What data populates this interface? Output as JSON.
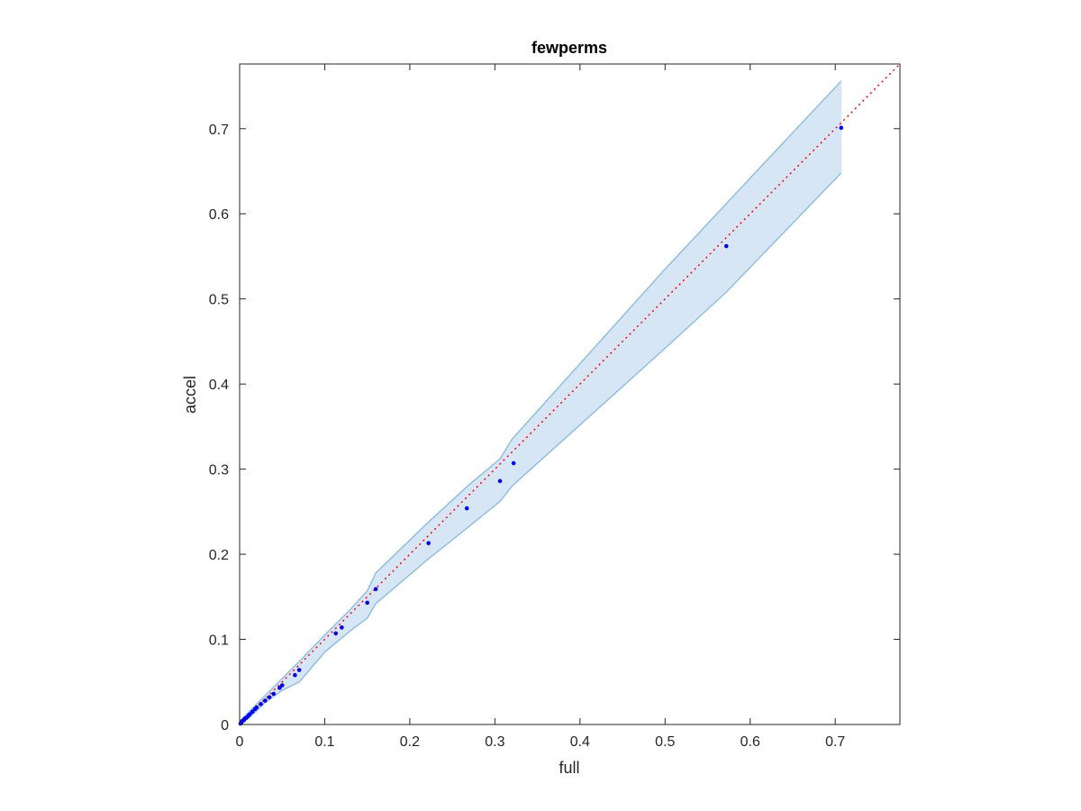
{
  "chart_data": {
    "type": "scatter",
    "title": "fewperms",
    "xlabel": "full",
    "ylabel": "accel",
    "xlim": [
      0,
      0.776
    ],
    "ylim": [
      0,
      0.776
    ],
    "x_ticks": [
      0,
      0.1,
      0.2,
      0.3,
      0.4,
      0.5,
      0.6,
      0.7
    ],
    "x_tick_labels": [
      "0",
      "0.1",
      "0.2",
      "0.3",
      "0.4",
      "0.5",
      "0.6",
      "0.7"
    ],
    "y_ticks": [
      0,
      0.1,
      0.2,
      0.3,
      0.4,
      0.5,
      0.6,
      0.7
    ],
    "y_tick_labels": [
      "0",
      "0.1",
      "0.2",
      "0.3",
      "0.4",
      "0.5",
      "0.6",
      "0.7"
    ],
    "grid": false,
    "colors": {
      "points": "#0000ff",
      "diagonal": "#ff0000",
      "band_fill": "#d6e6f4",
      "band_edge": "#8fc0e0",
      "axes": "#262626"
    },
    "points": {
      "x": [
        0.001,
        0.002,
        0.003,
        0.005,
        0.006,
        0.008,
        0.01,
        0.012,
        0.015,
        0.018,
        0.02,
        0.025,
        0.03,
        0.035,
        0.04,
        0.047,
        0.05,
        0.065,
        0.07,
        0.113,
        0.12,
        0.15,
        0.16,
        0.222,
        0.267,
        0.306,
        0.322,
        0.572,
        0.707
      ],
      "y": [
        0.001,
        0.002,
        0.004,
        0.005,
        0.007,
        0.008,
        0.01,
        0.012,
        0.015,
        0.018,
        0.02,
        0.024,
        0.028,
        0.032,
        0.036,
        0.043,
        0.046,
        0.058,
        0.064,
        0.107,
        0.114,
        0.143,
        0.159,
        0.213,
        0.254,
        0.286,
        0.307,
        0.562,
        0.701
      ]
    },
    "band": {
      "x": [
        0,
        0.01,
        0.02,
        0.03,
        0.05,
        0.07,
        0.1,
        0.13,
        0.15,
        0.16,
        0.22,
        0.27,
        0.306,
        0.32,
        0.5,
        0.572,
        0.707
      ],
      "upper": [
        0.003,
        0.014,
        0.024,
        0.034,
        0.054,
        0.074,
        0.105,
        0.135,
        0.157,
        0.178,
        0.236,
        0.282,
        0.312,
        0.335,
        0.535,
        0.612,
        0.756
      ],
      "lower": [
        0,
        0.007,
        0.016,
        0.026,
        0.04,
        0.05,
        0.085,
        0.11,
        0.125,
        0.142,
        0.193,
        0.233,
        0.262,
        0.28,
        0.442,
        0.508,
        0.648
      ]
    },
    "diagonal": {
      "from": 0,
      "to": 0.776
    }
  }
}
